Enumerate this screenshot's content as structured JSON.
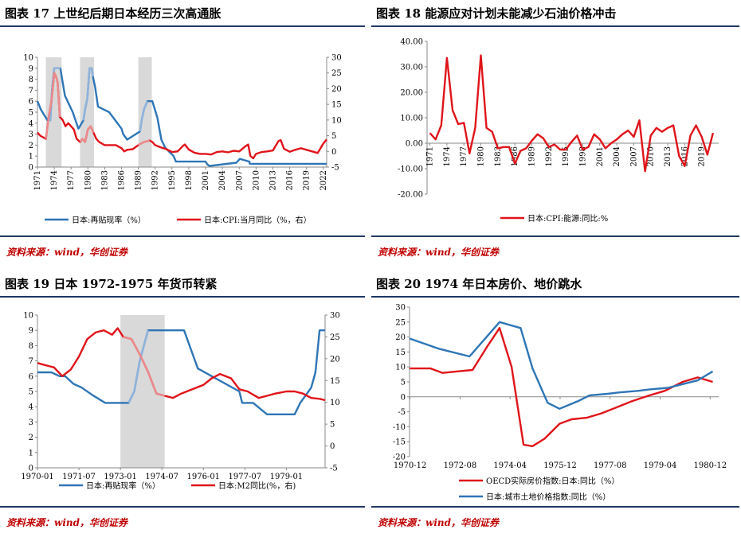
{
  "colors": {
    "blue": "#2e75b6",
    "red": "#e0141a",
    "lightblue": "#8fb4dc",
    "lightred": "#ec8a8c",
    "band": "#d9d9d9",
    "navy": "#1f3864",
    "source": "#c00000"
  },
  "panels": [
    {
      "title": "图表 17  上世纪后期日本经历三次高通胀",
      "source": "资料来源：wind，华创证券",
      "chart_data": {
        "type": "line",
        "x_ticks": [
          "1971",
          "1974",
          "1977",
          "1980",
          "1983",
          "1986",
          "1989",
          "1992",
          "1995",
          "1998",
          "2001",
          "2004",
          "2007",
          "2010",
          "2013",
          "2016",
          "2019",
          "2022"
        ],
        "xlim": [
          1971,
          2022.6
        ],
        "y_left": {
          "lim": [
            0,
            10
          ],
          "ticks": [
            0,
            1,
            2,
            3,
            4,
            5,
            6,
            7,
            8,
            9,
            10
          ]
        },
        "y_right": {
          "lim": [
            -5,
            30
          ],
          "ticks": [
            -5,
            0,
            5,
            10,
            15,
            20,
            25,
            30
          ]
        },
        "shaded": [
          [
            1972.5,
            1975.3
          ],
          [
            1978.6,
            1981.1
          ],
          [
            1989.0,
            1991.4
          ]
        ],
        "series": [
          {
            "name": "日本:再贴现率（%）",
            "axis": "left",
            "x": [
              1971,
              1971.6,
              1972.2,
              1972.8,
              1973.3,
              1973.6,
              1974.0,
              1974.5,
              1975.1,
              1975.4,
              1975.9,
              1977.3,
              1977.8,
              1978.3,
              1979.2,
              1979.5,
              1979.9,
              1980.3,
              1980.7,
              1980.9,
              1981.3,
              1981.8,
              1983.8,
              1986.0,
              1986.3,
              1987.0,
              1989.3,
              1989.6,
              1990.0,
              1990.6,
              1991.5,
              1991.8,
              1992.4,
              1993.1,
              1993.8,
              1995.3,
              1995.7,
              2001.0,
              2001.3,
              2001.7,
              2006.5,
              2007.1,
              2008.8,
              2008.9,
              2022.6
            ],
            "y": [
              6.0,
              5.25,
              4.75,
              4.25,
              4.25,
              7.0,
              9.0,
              9.0,
              9.0,
              8.0,
              6.5,
              5.0,
              4.25,
              3.5,
              4.25,
              5.25,
              6.25,
              9.0,
              9.0,
              8.25,
              7.25,
              5.5,
              5.0,
              3.5,
              3.0,
              2.5,
              3.25,
              4.25,
              5.25,
              6.0,
              6.0,
              5.5,
              4.5,
              2.5,
              1.75,
              1.0,
              0.5,
              0.5,
              0.25,
              0.1,
              0.4,
              0.75,
              0.5,
              0.3,
              0.3
            ]
          },
          {
            "name": "日本:CPI:当月同比（%，右）",
            "axis": "right",
            "x": [
              1971,
              1971.5,
              1972,
              1972.5,
              1973,
              1973.5,
              1974.0,
              1974.3,
              1974.6,
              1975,
              1975.5,
              1976,
              1976.5,
              1977,
              1977.5,
              1978,
              1978.6,
              1979,
              1979.5,
              1980,
              1980.5,
              1981,
              1981.5,
              1982,
              1983,
              1984,
              1985,
              1986,
              1986.5,
              1987,
              1988,
              1989,
              1989.5,
              1990,
              1990.5,
              1991,
              1991.5,
              1992,
              1993,
              1994,
              1995,
              1996,
              1997,
              1997.3,
              1998,
              1999,
              2000,
              2001,
              2002,
              2003,
              2004,
              2005,
              2006,
              2007,
              2008,
              2008.6,
              2009,
              2009.5,
              2010,
              2011,
              2012,
              2013,
              2014,
              2014.4,
              2015,
              2016,
              2017,
              2018,
              2019,
              2020,
              2021,
              2022,
              2022.6
            ],
            "y": [
              6,
              5,
              4.5,
              4,
              11,
              16,
              25,
              24,
              22,
              11,
              10,
              8,
              9,
              8,
              7,
              4,
              3,
              4,
              3,
              7,
              8,
              6,
              4,
              3,
              2,
              2,
              2,
              1,
              0,
              0.5,
              0.7,
              2,
              2.5,
              3,
              3.2,
              3.5,
              3,
              2,
              1.3,
              0.7,
              -0.2,
              0,
              1.8,
              2.2,
              0.6,
              -0.4,
              -0.8,
              -0.8,
              -1.0,
              -0.2,
              0,
              -0.3,
              0.2,
              0,
              1.5,
              2.2,
              -1.5,
              -2.2,
              -0.8,
              -0.2,
              0,
              0.3,
              3.3,
              3.6,
              0.8,
              -0.1,
              0.5,
              1.0,
              0.5,
              0,
              -0.5,
              2.5,
              3.8
            ]
          }
        ]
      }
    },
    {
      "title": "图表 18  能源应对计划未能减少石油价格冲击",
      "source": "资料来源：wind，华创证券",
      "chart_data": {
        "type": "line",
        "x_ticks": [
          "1971",
          "1974",
          "1977",
          "1980",
          "1983",
          "1986",
          "1989",
          "1992",
          "1995",
          "1998",
          "2001",
          "2004",
          "2007",
          "2010",
          "2013",
          "2016",
          "2019"
        ],
        "xlim": [
          1970.5,
          2022
        ],
        "y_left": {
          "lim": [
            -20,
            40
          ],
          "ticks": [
            "-20.00",
            "-10.00",
            "0.00",
            "10.00",
            "20.00",
            "30.00",
            "40.00"
          ],
          "tick_values": [
            -20,
            -10,
            0,
            10,
            20,
            30,
            40
          ]
        },
        "series": [
          {
            "name": "日本:CPI:能源:同比:%",
            "axis": "left",
            "x": [
              1971,
              1972,
              1973,
              1974,
              1975,
              1976,
              1977,
              1978,
              1979,
              1980,
              1981,
              1982,
              1983,
              1984,
              1985,
              1986,
              1987,
              1988,
              1989,
              1990,
              1991,
              1992,
              1993,
              1994,
              1995,
              1996,
              1997,
              1998,
              1999,
              2000,
              2001,
              2002,
              2003,
              2004,
              2005,
              2006,
              2007,
              2008,
              2009,
              2010,
              2011,
              2012,
              2013,
              2014,
              2015,
              2016,
              2017,
              2018,
              2019,
              2020,
              2021
            ],
            "y": [
              4,
              1.5,
              7,
              33.5,
              13,
              7.5,
              8,
              -4,
              6,
              34.5,
              6,
              4.5,
              -2,
              -1.5,
              -1.5,
              -8,
              -3,
              -2,
              1,
              3.5,
              2,
              -1.5,
              -0.5,
              -2.5,
              -2.5,
              0.5,
              3,
              -2.5,
              -1.5,
              3.5,
              1.5,
              -2,
              0,
              1.5,
              3.5,
              5,
              2.5,
              9,
              -11,
              3,
              6,
              4.5,
              6,
              7,
              -5,
              -9,
              3,
              7,
              2.5,
              -4.5,
              4
            ]
          }
        ]
      }
    },
    {
      "title": "图表 19  日本 1972-1975 年货币转紧",
      "source": "资料来源：wind，华创证券",
      "chart_data": {
        "type": "line",
        "x_ticks": [
          "1970-01",
          "1971-07",
          "1973-01",
          "1974-07",
          "1976-01",
          "1977-07",
          "1979-01"
        ],
        "xlim": [
          1970.0,
          1980.4
        ],
        "y_left": {
          "lim": [
            0,
            10
          ],
          "ticks": [
            0,
            1,
            2,
            3,
            4,
            5,
            6,
            7,
            8,
            9,
            10
          ]
        },
        "y_right": {
          "lim": [
            -5,
            30
          ],
          "ticks": [
            -5,
            0,
            5,
            10,
            15,
            20,
            25,
            30
          ]
        },
        "shaded": [
          [
            1973.0,
            1974.6
          ]
        ],
        "series": [
          {
            "name": "日本:再贴现率（%）",
            "axis": "left",
            "x": [
              1970.0,
              1970.5,
              1970.8,
              1971.0,
              1971.3,
              1971.6,
              1972.0,
              1972.45,
              1973.3,
              1973.5,
              1973.7,
              1974.0,
              1975.3,
              1975.5,
              1975.8,
              1977.3,
              1977.4,
              1977.8,
              1978.3,
              1979.3,
              1979.5,
              1979.9,
              1980.05,
              1980.2,
              1980.4
            ],
            "y": [
              6.25,
              6.25,
              6.0,
              6.0,
              5.5,
              5.25,
              4.75,
              4.25,
              4.25,
              5.0,
              7.0,
              9.0,
              9.0,
              8.0,
              6.5,
              5.0,
              4.25,
              4.25,
              3.5,
              3.5,
              4.25,
              5.25,
              6.25,
              9.0,
              9.0
            ]
          },
          {
            "name": "日本:M2同比(%，右)",
            "axis": "right",
            "x": [
              1970.0,
              1970.3,
              1970.6,
              1970.9,
              1971.2,
              1971.5,
              1971.8,
              1972.1,
              1972.4,
              1972.7,
              1972.9,
              1973.1,
              1973.4,
              1973.7,
              1974.0,
              1974.3,
              1974.6,
              1974.9,
              1975.2,
              1975.6,
              1976.0,
              1976.3,
              1976.6,
              1977.0,
              1977.3,
              1977.6,
              1978.0,
              1978.3,
              1978.6,
              1979.0,
              1979.3,
              1979.6,
              1979.9,
              1980.2,
              1980.4
            ],
            "y": [
              19,
              18.5,
              18,
              16,
              17.5,
              20.5,
              24.5,
              26,
              26.5,
              25.5,
              27,
              25,
              24.5,
              21,
              17,
              12,
              11.5,
              11,
              12,
              13,
              14,
              15.5,
              16.5,
              15.5,
              13,
              12.5,
              11,
              11.5,
              12,
              12.5,
              12.5,
              12,
              11,
              10.8,
              10.5
            ]
          }
        ]
      }
    },
    {
      "title": "图表 20  1974 年日本房价、地价跳水",
      "source": "资料来源：wind，华创证券",
      "chart_data": {
        "type": "line",
        "x_ticks": [
          "1970-12",
          "1972-08",
          "1974-04",
          "1975-12",
          "1977-08",
          "1979-04",
          "1980-12"
        ],
        "xlim": [
          1970.9,
          1981.2
        ],
        "y_left": {
          "lim": [
            -20,
            30
          ],
          "ticks": [
            -20,
            -15,
            -10,
            -5,
            0,
            5,
            10,
            15,
            20,
            25,
            30
          ]
        },
        "series": [
          {
            "name": "OECD实际房价指数:日本:同比（%）",
            "axis": "left",
            "x": [
              1970.9,
              1971.6,
              1972.0,
              1972.5,
              1973.0,
              1973.5,
              1973.9,
              1974.3,
              1974.7,
              1975.0,
              1975.4,
              1975.9,
              1976.3,
              1976.8,
              1977.3,
              1977.8,
              1978.3,
              1978.9,
              1979.4,
              1980.0,
              1980.5,
              1981.0
            ],
            "y": [
              9.5,
              9.5,
              8,
              8.5,
              9,
              17,
              23,
              10,
              -16,
              -16.5,
              -14,
              -9,
              -7.5,
              -7,
              -5.5,
              -3.5,
              -1.5,
              0.5,
              2,
              5,
              6.5,
              5
            ]
          },
          {
            "name": "日本:城市土地价格指数:同比（%）",
            "axis": "left",
            "x": [
              1970.9,
              1971.9,
              1972.9,
              1973.9,
              1974.6,
              1975.0,
              1975.5,
              1975.9,
              1976.5,
              1976.9,
              1977.5,
              1977.9,
              1978.5,
              1978.9,
              1979.5,
              1979.9,
              1980.5,
              1981.0
            ],
            "y": [
              19.5,
              16,
              13.5,
              25,
              23,
              9.5,
              -2,
              -4,
              -1.5,
              0.5,
              1,
              1.5,
              2,
              2.5,
              3,
              4,
              5.5,
              8.5
            ]
          }
        ]
      }
    }
  ]
}
